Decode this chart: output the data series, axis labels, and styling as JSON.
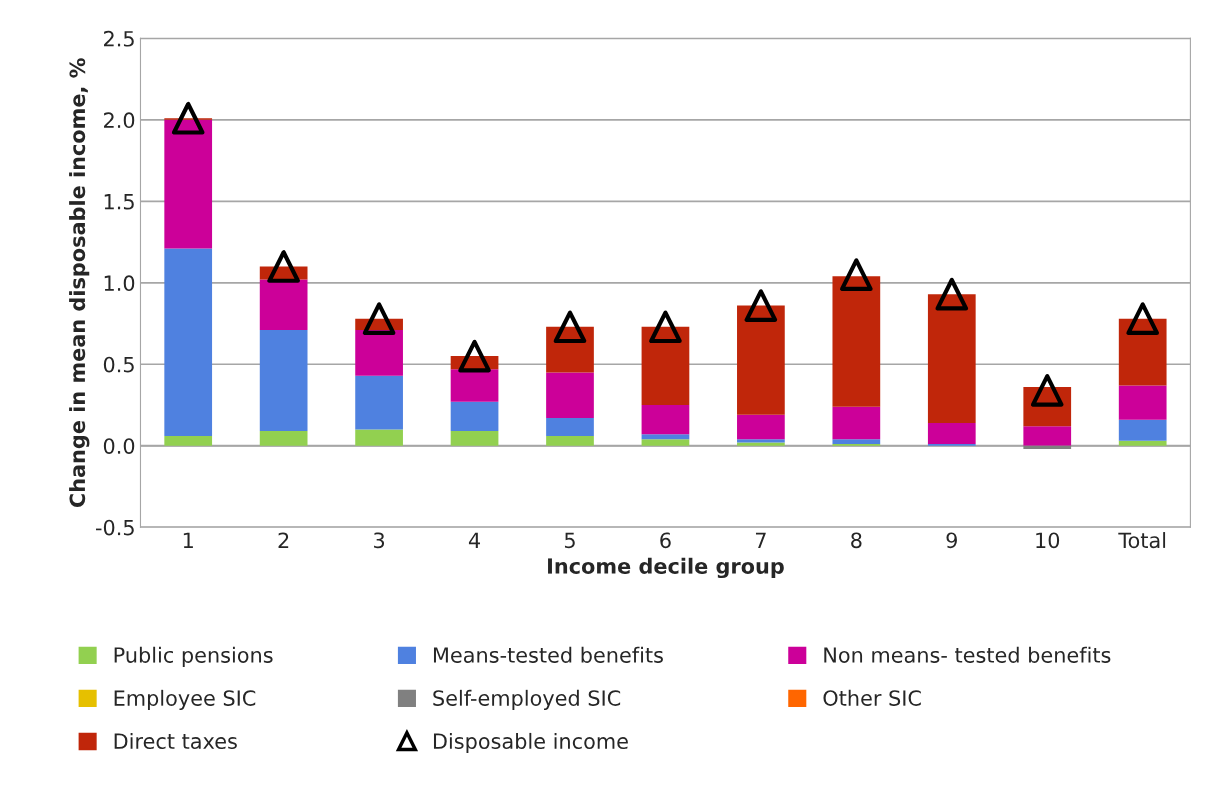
{
  "chart_data": {
    "type": "bar",
    "stacked": true,
    "xlabel": "Income decile group",
    "ylabel": "Change in mean disposable income, %",
    "categories": [
      "1",
      "2",
      "3",
      "4",
      "5",
      "6",
      "7",
      "8",
      "9",
      "10",
      "Total"
    ],
    "series": [
      {
        "name": "Public pensions",
        "color": "#92d050",
        "values": [
          0.06,
          0.09,
          0.1,
          0.09,
          0.06,
          0.04,
          0.02,
          0.01,
          0.0,
          0.0,
          0.03
        ]
      },
      {
        "name": "Means-tested benefits",
        "color": "#4f81e0",
        "values": [
          1.15,
          0.62,
          0.33,
          0.18,
          0.11,
          0.03,
          0.02,
          0.03,
          0.01,
          0.0,
          0.13
        ]
      },
      {
        "name": "Non means- tested benefits",
        "color": "#cc0099",
        "values": [
          0.79,
          0.31,
          0.28,
          0.2,
          0.28,
          0.18,
          0.15,
          0.2,
          0.13,
          0.12,
          0.21
        ]
      },
      {
        "name": "Employee SIC",
        "color": "#e6c000",
        "values": [
          0.0,
          0.0,
          0.0,
          0.0,
          0.0,
          0.0,
          0.0,
          0.0,
          0.0,
          0.0,
          0.0
        ]
      },
      {
        "name": "Self-employed SIC",
        "color": "#808080",
        "values": [
          0.0,
          0.0,
          0.0,
          0.0,
          0.0,
          0.0,
          0.0,
          0.0,
          0.0,
          -0.02,
          0.0
        ]
      },
      {
        "name": "Other SIC",
        "color": "#ff6600",
        "values": [
          0.0,
          0.0,
          0.0,
          0.0,
          0.0,
          0.0,
          0.0,
          0.0,
          0.0,
          0.0,
          0.0
        ]
      },
      {
        "name": "Direct taxes",
        "color": "#c0260a",
        "values": [
          0.01,
          0.08,
          0.07,
          0.08,
          0.28,
          0.48,
          0.67,
          0.8,
          0.79,
          0.24,
          0.41
        ]
      },
      {
        "name": "Disposable income",
        "type": "scatter",
        "color": "#000000",
        "values": [
          2.01,
          1.1,
          0.78,
          0.55,
          0.73,
          0.73,
          0.86,
          1.05,
          0.93,
          0.34,
          0.78
        ]
      }
    ],
    "marker": "triangle",
    "ylim": [
      -0.5,
      2.5
    ],
    "yticks": [
      {
        "value": -0.5,
        "label": "-0.5"
      },
      {
        "value": 0,
        "label": "0.0"
      },
      {
        "value": 0.5,
        "label": "0.5"
      },
      {
        "value": 1,
        "label": "1.0"
      },
      {
        "value": 1.5,
        "label": "1.5"
      },
      {
        "value": 2,
        "label": "2.0"
      },
      {
        "value": 2.5,
        "label": "2.5"
      }
    ],
    "grid": "y",
    "legend": "bottom"
  }
}
